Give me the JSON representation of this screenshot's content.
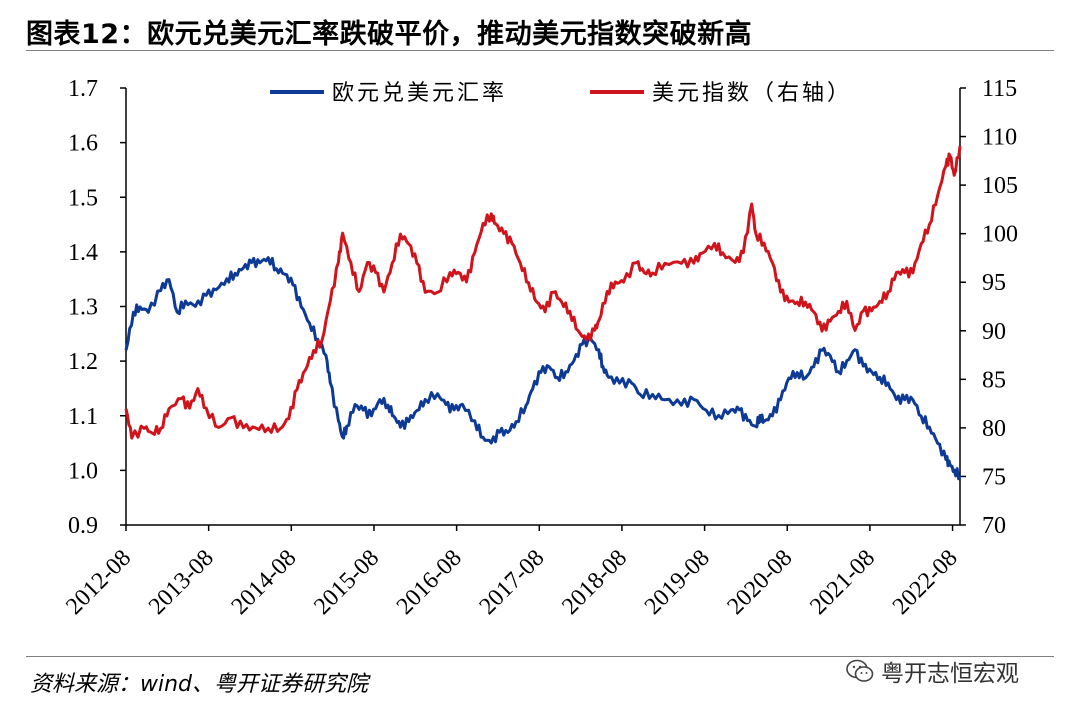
{
  "header": {
    "title": "图表12：欧元兑美元汇率跌破平价，推动美元指数突破新高"
  },
  "footer": {
    "source": "资料来源：wind、粤开证券研究院",
    "watermark": "粤开志恒宏观"
  },
  "colors": {
    "eurusd": "#0c3a94",
    "dxy": "#d0141c",
    "axis": "#000000",
    "rule": "#7f7f7f"
  },
  "chart_data": {
    "type": "line",
    "title": "欧元兑美元汇率跌破平价，推动美元指数突破新高",
    "xlabel": "",
    "ylabel": "",
    "ylabel_right": "",
    "x_start": 2012.58,
    "x_end": 2022.67,
    "x_ticks": [
      "2012-08",
      "2013-08",
      "2014-08",
      "2015-08",
      "2016-08",
      "2017-08",
      "2018-08",
      "2019-08",
      "2020-08",
      "2021-08",
      "2022-08"
    ],
    "ylim_left": [
      0.9,
      1.7
    ],
    "yticks_left": [
      "0.9",
      "1.0",
      "1.1",
      "1.2",
      "1.3",
      "1.4",
      "1.5",
      "1.6",
      "1.7"
    ],
    "ylim_right": [
      70,
      115
    ],
    "yticks_right": [
      "70",
      "75",
      "80",
      "85",
      "90",
      "95",
      "100",
      "105",
      "110",
      "115"
    ],
    "legend": "top",
    "grid": false,
    "series": [
      {
        "name": "欧元兑美元汇率",
        "axis": "left",
        "color": "#0c3a94",
        "points": [
          [
            2012.58,
            1.22
          ],
          [
            2012.67,
            1.29
          ],
          [
            2012.75,
            1.3
          ],
          [
            2012.85,
            1.29
          ],
          [
            2013.0,
            1.33
          ],
          [
            2013.1,
            1.35
          ],
          [
            2013.2,
            1.29
          ],
          [
            2013.3,
            1.31
          ],
          [
            2013.42,
            1.3
          ],
          [
            2013.55,
            1.32
          ],
          [
            2013.67,
            1.33
          ],
          [
            2013.8,
            1.35
          ],
          [
            2013.9,
            1.36
          ],
          [
            2014.0,
            1.37
          ],
          [
            2014.1,
            1.38
          ],
          [
            2014.2,
            1.38
          ],
          [
            2014.3,
            1.39
          ],
          [
            2014.4,
            1.37
          ],
          [
            2014.5,
            1.36
          ],
          [
            2014.6,
            1.34
          ],
          [
            2014.7,
            1.3
          ],
          [
            2014.8,
            1.27
          ],
          [
            2014.9,
            1.24
          ],
          [
            2015.0,
            1.21
          ],
          [
            2015.05,
            1.16
          ],
          [
            2015.15,
            1.09
          ],
          [
            2015.2,
            1.06
          ],
          [
            2015.25,
            1.08
          ],
          [
            2015.35,
            1.12
          ],
          [
            2015.45,
            1.11
          ],
          [
            2015.55,
            1.1
          ],
          [
            2015.65,
            1.13
          ],
          [
            2015.75,
            1.12
          ],
          [
            2015.82,
            1.1
          ],
          [
            2015.9,
            1.08
          ],
          [
            2016.0,
            1.09
          ],
          [
            2016.1,
            1.11
          ],
          [
            2016.2,
            1.13
          ],
          [
            2016.35,
            1.14
          ],
          [
            2016.45,
            1.12
          ],
          [
            2016.55,
            1.11
          ],
          [
            2016.65,
            1.12
          ],
          [
            2016.8,
            1.09
          ],
          [
            2016.9,
            1.06
          ],
          [
            2017.0,
            1.05
          ],
          [
            2017.1,
            1.07
          ],
          [
            2017.2,
            1.07
          ],
          [
            2017.3,
            1.09
          ],
          [
            2017.42,
            1.12
          ],
          [
            2017.5,
            1.15
          ],
          [
            2017.6,
            1.18
          ],
          [
            2017.7,
            1.19
          ],
          [
            2017.8,
            1.17
          ],
          [
            2017.9,
            1.18
          ],
          [
            2018.0,
            1.2
          ],
          [
            2018.1,
            1.23
          ],
          [
            2018.2,
            1.24
          ],
          [
            2018.3,
            1.22
          ],
          [
            2018.35,
            1.19
          ],
          [
            2018.42,
            1.17
          ],
          [
            2018.55,
            1.16
          ],
          [
            2018.7,
            1.16
          ],
          [
            2018.8,
            1.14
          ],
          [
            2018.95,
            1.14
          ],
          [
            2019.1,
            1.13
          ],
          [
            2019.3,
            1.12
          ],
          [
            2019.45,
            1.13
          ],
          [
            2019.6,
            1.11
          ],
          [
            2019.75,
            1.1
          ],
          [
            2019.9,
            1.11
          ],
          [
            2020.0,
            1.11
          ],
          [
            2020.1,
            1.09
          ],
          [
            2020.2,
            1.08
          ],
          [
            2020.25,
            1.1
          ],
          [
            2020.3,
            1.09
          ],
          [
            2020.4,
            1.1
          ],
          [
            2020.5,
            1.13
          ],
          [
            2020.6,
            1.17
          ],
          [
            2020.7,
            1.18
          ],
          [
            2020.8,
            1.17
          ],
          [
            2020.9,
            1.19
          ],
          [
            2021.0,
            1.22
          ],
          [
            2021.1,
            1.21
          ],
          [
            2021.2,
            1.18
          ],
          [
            2021.3,
            1.2
          ],
          [
            2021.4,
            1.22
          ],
          [
            2021.5,
            1.19
          ],
          [
            2021.6,
            1.18
          ],
          [
            2021.7,
            1.17
          ],
          [
            2021.8,
            1.16
          ],
          [
            2021.9,
            1.13
          ],
          [
            2022.0,
            1.13
          ],
          [
            2022.1,
            1.13
          ],
          [
            2022.2,
            1.1
          ],
          [
            2022.3,
            1.08
          ],
          [
            2022.4,
            1.05
          ],
          [
            2022.5,
            1.02
          ],
          [
            2022.55,
            1.01
          ],
          [
            2022.6,
            1.0
          ],
          [
            2022.67,
            0.99
          ]
        ]
      },
      {
        "name": "美元指数（右轴）",
        "axis": "right",
        "color": "#d0141c",
        "points": [
          [
            2012.58,
            82
          ],
          [
            2012.65,
            79
          ],
          [
            2012.8,
            80
          ],
          [
            2012.9,
            79.5
          ],
          [
            2013.0,
            80
          ],
          [
            2013.1,
            82
          ],
          [
            2013.25,
            83
          ],
          [
            2013.35,
            82
          ],
          [
            2013.45,
            84
          ],
          [
            2013.55,
            82
          ],
          [
            2013.7,
            80
          ],
          [
            2013.85,
            81
          ],
          [
            2014.0,
            80
          ],
          [
            2014.15,
            80
          ],
          [
            2014.3,
            80
          ],
          [
            2014.45,
            80
          ],
          [
            2014.55,
            81
          ],
          [
            2014.65,
            84
          ],
          [
            2014.75,
            86
          ],
          [
            2014.85,
            88
          ],
          [
            2014.95,
            89
          ],
          [
            2015.05,
            93
          ],
          [
            2015.15,
            97
          ],
          [
            2015.2,
            100
          ],
          [
            2015.3,
            97
          ],
          [
            2015.4,
            94
          ],
          [
            2015.5,
            97
          ],
          [
            2015.6,
            96
          ],
          [
            2015.7,
            94
          ],
          [
            2015.8,
            97
          ],
          [
            2015.9,
            100
          ],
          [
            2016.0,
            99
          ],
          [
            2016.1,
            97
          ],
          [
            2016.2,
            94
          ],
          [
            2016.35,
            94
          ],
          [
            2016.5,
            96
          ],
          [
            2016.6,
            96
          ],
          [
            2016.7,
            95
          ],
          [
            2016.8,
            98
          ],
          [
            2016.9,
            101
          ],
          [
            2017.0,
            102
          ],
          [
            2017.05,
            101
          ],
          [
            2017.15,
            100
          ],
          [
            2017.25,
            99
          ],
          [
            2017.35,
            97
          ],
          [
            2017.45,
            95
          ],
          [
            2017.55,
            93
          ],
          [
            2017.65,
            92
          ],
          [
            2017.75,
            94
          ],
          [
            2017.85,
            93
          ],
          [
            2017.95,
            92
          ],
          [
            2018.05,
            90
          ],
          [
            2018.15,
            89
          ],
          [
            2018.25,
            90
          ],
          [
            2018.3,
            91
          ],
          [
            2018.4,
            94
          ],
          [
            2018.5,
            95
          ],
          [
            2018.6,
            95
          ],
          [
            2018.75,
            97
          ],
          [
            2018.85,
            96
          ],
          [
            2018.95,
            96
          ],
          [
            2019.1,
            97
          ],
          [
            2019.3,
            97
          ],
          [
            2019.45,
            97
          ],
          [
            2019.55,
            98
          ],
          [
            2019.7,
            99
          ],
          [
            2019.8,
            98
          ],
          [
            2019.95,
            97
          ],
          [
            2020.05,
            98
          ],
          [
            2020.15,
            103
          ],
          [
            2020.2,
            100
          ],
          [
            2020.3,
            99
          ],
          [
            2020.4,
            97
          ],
          [
            2020.5,
            94
          ],
          [
            2020.6,
            93
          ],
          [
            2020.7,
            93
          ],
          [
            2020.8,
            93
          ],
          [
            2020.9,
            92
          ],
          [
            2021.0,
            90
          ],
          [
            2021.1,
            91
          ],
          [
            2021.2,
            92
          ],
          [
            2021.3,
            93
          ],
          [
            2021.4,
            90
          ],
          [
            2021.5,
            92
          ],
          [
            2021.6,
            92
          ],
          [
            2021.7,
            93
          ],
          [
            2021.8,
            94
          ],
          [
            2021.9,
            96
          ],
          [
            2022.0,
            96
          ],
          [
            2022.1,
            96
          ],
          [
            2022.2,
            99
          ],
          [
            2022.3,
            101
          ],
          [
            2022.4,
            104
          ],
          [
            2022.5,
            107
          ],
          [
            2022.55,
            108
          ],
          [
            2022.6,
            106
          ],
          [
            2022.67,
            109
          ]
        ]
      }
    ]
  }
}
